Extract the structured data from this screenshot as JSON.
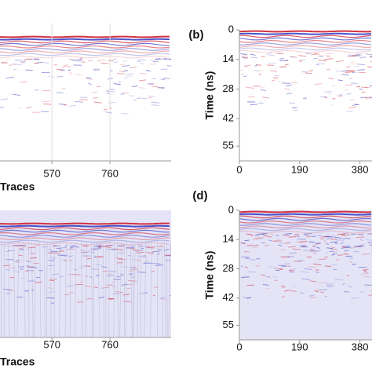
{
  "chart_data": [
    {
      "type": "radargram",
      "xlabel": "Traces",
      "xlim": [
        400,
        960
      ],
      "xticks": [
        570,
        760
      ],
      "grid": true,
      "background": "#ffffff"
    },
    {
      "type": "radargram",
      "panel": "(b)",
      "ylabel": "Time (ns)",
      "xlim": [
        0,
        418
      ],
      "xticks": [
        0,
        190,
        380
      ],
      "ylim": [
        0,
        62
      ],
      "yticks": [
        0,
        14,
        28,
        42,
        55
      ],
      "background": "#ffffff"
    },
    {
      "type": "radargram",
      "xlabel": "Traces",
      "xlim": [
        400,
        960
      ],
      "xticks": [
        570,
        760
      ],
      "background": "#e4e4f6"
    },
    {
      "type": "radargram",
      "panel": "(d)",
      "ylabel": "Time (ns)",
      "xlim": [
        0,
        418
      ],
      "xticks": [
        0,
        190,
        380
      ],
      "ylim": [
        0,
        62
      ],
      "yticks": [
        0,
        14,
        28,
        42,
        55
      ],
      "background": "#e4e4f6"
    }
  ]
}
